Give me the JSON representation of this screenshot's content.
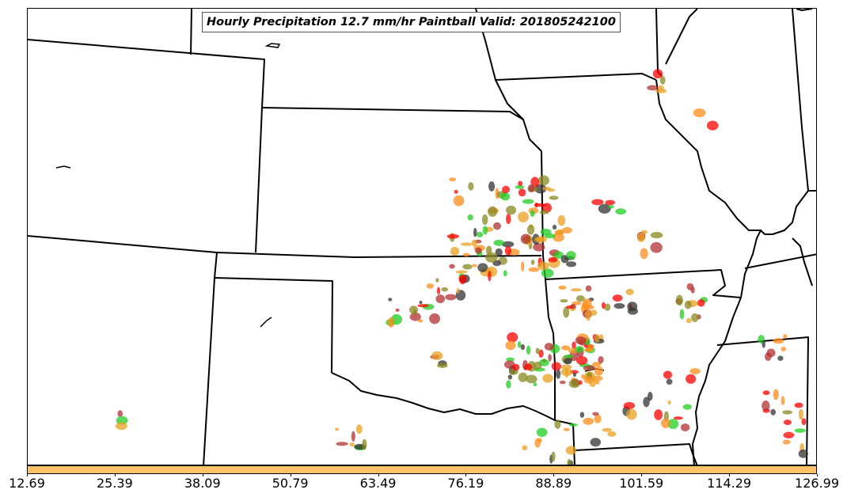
{
  "title": "Hourly Precipitation 12.7 mm/hr Paintball Valid: 201805242100",
  "colorbar": {
    "color": "#ffc266",
    "ticks": [
      "12.69",
      "25.39",
      "38.09",
      "50.79",
      "63.49",
      "76.19",
      "88.89",
      "101.59",
      "114.29",
      "126.99"
    ]
  },
  "paintball_colors": [
    "#ff0000",
    "#ff8c1a",
    "#22cc22",
    "#888822",
    "#333333",
    "#b03030",
    "#e8a020"
  ]
}
